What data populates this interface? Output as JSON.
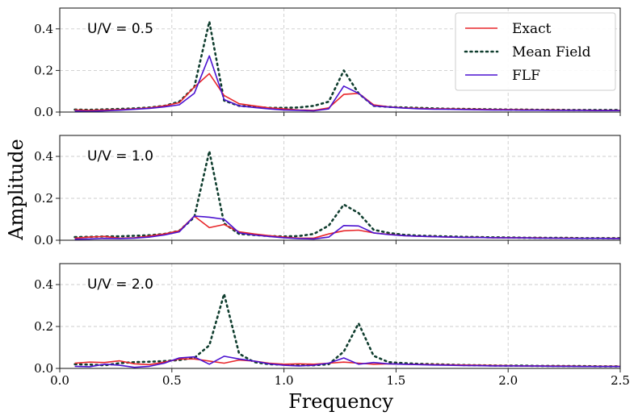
{
  "chart_data": {
    "type": "line",
    "xlabel": "Frequency",
    "ylabel": "Amplitude",
    "xlim": [
      0.0,
      2.5
    ],
    "ylim": [
      0.0,
      0.5
    ],
    "xticks": [
      "0.0",
      "0.5",
      "1.0",
      "1.5",
      "2.0",
      "2.5"
    ],
    "yticks": [
      "0.0",
      "0.2",
      "0.4"
    ],
    "grid": true,
    "legend": {
      "placement": "top-right",
      "entries": [
        "Exact",
        "Mean Field",
        "FLF"
      ]
    },
    "colors": {
      "Exact": "#e8262a",
      "Mean Field": "#0f3d2e",
      "FLF": "#4b12d0"
    },
    "x": [
      0.067,
      0.133,
      0.2,
      0.267,
      0.333,
      0.4,
      0.467,
      0.533,
      0.6,
      0.667,
      0.733,
      0.8,
      0.867,
      0.933,
      1.0,
      1.067,
      1.133,
      1.2,
      1.267,
      1.333,
      1.4,
      1.467,
      1.533,
      1.6,
      1.667,
      1.733,
      1.8,
      1.867,
      1.933,
      2.0,
      2.067,
      2.133,
      2.2,
      2.267,
      2.333,
      2.4,
      2.467,
      2.5
    ],
    "panels": [
      {
        "label": "U/V = 0.5",
        "series": [
          {
            "name": "Exact",
            "values": [
              0.01,
              0.008,
              0.01,
              0.012,
              0.015,
              0.02,
              0.03,
              0.045,
              0.12,
              0.185,
              0.08,
              0.04,
              0.03,
              0.02,
              0.015,
              0.01,
              0.008,
              0.02,
              0.085,
              0.09,
              0.035,
              0.025,
              0.02,
              0.018,
              0.016,
              0.015,
              0.014,
              0.013,
              0.012,
              0.012,
              0.011,
              0.01,
              0.01,
              0.009,
              0.009,
              0.008,
              0.008,
              0.008
            ]
          },
          {
            "name": "Mean Field",
            "values": [
              0.012,
              0.011,
              0.013,
              0.015,
              0.018,
              0.022,
              0.03,
              0.05,
              0.12,
              0.435,
              0.055,
              0.03,
              0.025,
              0.02,
              0.02,
              0.022,
              0.03,
              0.05,
              0.2,
              0.09,
              0.03,
              0.025,
              0.022,
              0.02,
              0.018,
              0.016,
              0.015,
              0.014,
              0.013,
              0.012,
              0.012,
              0.011,
              0.011,
              0.01,
              0.01,
              0.01,
              0.01,
              0.01
            ]
          },
          {
            "name": "FLF",
            "values": [
              0.005,
              0.004,
              0.006,
              0.009,
              0.013,
              0.018,
              0.025,
              0.035,
              0.09,
              0.27,
              0.06,
              0.03,
              0.022,
              0.015,
              0.01,
              0.008,
              0.006,
              0.015,
              0.125,
              0.09,
              0.03,
              0.024,
              0.019,
              0.016,
              0.014,
              0.013,
              0.012,
              0.011,
              0.01,
              0.01,
              0.009,
              0.009,
              0.008,
              0.008,
              0.008,
              0.007,
              0.007,
              0.007
            ]
          }
        ]
      },
      {
        "label": "U/V = 1.0",
        "series": [
          {
            "name": "Exact",
            "values": [
              0.01,
              0.015,
              0.018,
              0.01,
              0.012,
              0.02,
              0.03,
              0.045,
              0.115,
              0.06,
              0.075,
              0.04,
              0.03,
              0.022,
              0.015,
              0.01,
              0.01,
              0.03,
              0.045,
              0.048,
              0.035,
              0.028,
              0.022,
              0.019,
              0.017,
              0.015,
              0.014,
              0.013,
              0.012,
              0.012,
              0.011,
              0.011,
              0.01,
              0.01,
              0.009,
              0.009,
              0.009,
              0.009
            ]
          },
          {
            "name": "Mean Field",
            "values": [
              0.015,
              0.016,
              0.018,
              0.019,
              0.021,
              0.024,
              0.03,
              0.045,
              0.11,
              0.425,
              0.08,
              0.03,
              0.025,
              0.02,
              0.018,
              0.02,
              0.03,
              0.07,
              0.17,
              0.13,
              0.05,
              0.035,
              0.026,
              0.022,
              0.02,
              0.018,
              0.016,
              0.015,
              0.014,
              0.013,
              0.012,
              0.012,
              0.011,
              0.011,
              0.01,
              0.01,
              0.01,
              0.01
            ]
          },
          {
            "name": "FLF",
            "values": [
              0.005,
              0.006,
              0.009,
              0.008,
              0.01,
              0.015,
              0.025,
              0.04,
              0.115,
              0.11,
              0.1,
              0.035,
              0.025,
              0.018,
              0.012,
              0.008,
              0.006,
              0.015,
              0.07,
              0.068,
              0.035,
              0.027,
              0.022,
              0.019,
              0.017,
              0.015,
              0.014,
              0.013,
              0.012,
              0.011,
              0.011,
              0.01,
              0.01,
              0.009,
              0.009,
              0.009,
              0.008,
              0.008
            ]
          }
        ]
      },
      {
        "label": "U/V = 2.0",
        "series": [
          {
            "name": "Exact",
            "values": [
              0.025,
              0.03,
              0.028,
              0.036,
              0.022,
              0.018,
              0.03,
              0.045,
              0.045,
              0.035,
              0.025,
              0.04,
              0.035,
              0.025,
              0.02,
              0.022,
              0.02,
              0.025,
              0.03,
              0.025,
              0.02,
              0.022,
              0.02,
              0.019,
              0.018,
              0.017,
              0.016,
              0.015,
              0.014,
              0.013,
              0.012,
              0.012,
              0.011,
              0.011,
              0.01,
              0.01,
              0.01,
              0.01
            ]
          },
          {
            "name": "Mean Field",
            "values": [
              0.02,
              0.018,
              0.015,
              0.025,
              0.03,
              0.032,
              0.035,
              0.04,
              0.05,
              0.11,
              0.355,
              0.07,
              0.03,
              0.02,
              0.018,
              0.015,
              0.015,
              0.02,
              0.08,
              0.215,
              0.06,
              0.03,
              0.025,
              0.022,
              0.02,
              0.018,
              0.016,
              0.015,
              0.014,
              0.013,
              0.013,
              0.012,
              0.012,
              0.011,
              0.011,
              0.01,
              0.01,
              0.01
            ]
          },
          {
            "name": "FLF",
            "values": [
              0.01,
              0.008,
              0.02,
              0.015,
              0.005,
              0.01,
              0.025,
              0.05,
              0.055,
              0.02,
              0.058,
              0.045,
              0.035,
              0.022,
              0.015,
              0.012,
              0.015,
              0.025,
              0.05,
              0.02,
              0.028,
              0.022,
              0.02,
              0.018,
              0.016,
              0.015,
              0.014,
              0.013,
              0.012,
              0.012,
              0.011,
              0.011,
              0.01,
              0.01,
              0.009,
              0.009,
              0.009,
              0.009
            ]
          }
        ]
      }
    ]
  }
}
